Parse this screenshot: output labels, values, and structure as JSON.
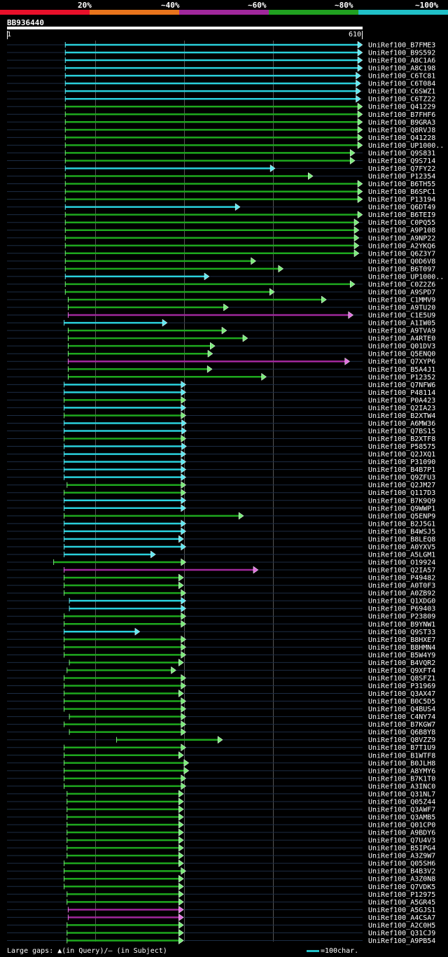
{
  "legend": {
    "labels": [
      "20%",
      "~40%",
      "~60%",
      "~80%",
      "~100%"
    ],
    "colors": [
      "#e8102a",
      "#e8741c",
      "#a0289c",
      "#20a020",
      "#20c0c8"
    ]
  },
  "query": {
    "name": "BB936440",
    "start": "1",
    "end": "610",
    "length": 610
  },
  "footer": {
    "text": "Large gaps: ▲(in Query)/– (in Subject)",
    "scale_text": "=100char.",
    "scale_color": "#20c0c8"
  },
  "chart_data": {
    "type": "alignment",
    "query_length": 610,
    "hits": [
      {
        "name": "UniRef100_B7FME3",
        "start": 100,
        "end": 610,
        "color": "cyan"
      },
      {
        "name": "UniRef100_B9S592",
        "start": 100,
        "end": 610,
        "color": "cyan"
      },
      {
        "name": "UniRef100_A8C1A6",
        "start": 100,
        "end": 610,
        "color": "cyan"
      },
      {
        "name": "UniRef100_A8C198",
        "start": 100,
        "end": 610,
        "color": "cyan"
      },
      {
        "name": "UniRef100_C6TC81",
        "start": 100,
        "end": 607,
        "color": "cyan"
      },
      {
        "name": "UniRef100_C6T084",
        "start": 100,
        "end": 607,
        "color": "cyan"
      },
      {
        "name": "UniRef100_C6SWZ1",
        "start": 100,
        "end": 607,
        "color": "cyan"
      },
      {
        "name": "UniRef100_C6TZ22",
        "start": 100,
        "end": 607,
        "color": "cyan"
      },
      {
        "name": "UniRef100_Q41229",
        "start": 100,
        "end": 610,
        "color": "green"
      },
      {
        "name": "UniRef100_B7FHF6",
        "start": 100,
        "end": 610,
        "color": "green"
      },
      {
        "name": "UniRef100_B9GRA3",
        "start": 100,
        "end": 610,
        "color": "green"
      },
      {
        "name": "UniRef100_Q8RVJ8",
        "start": 100,
        "end": 610,
        "color": "green"
      },
      {
        "name": "UniRef100_Q41228",
        "start": 100,
        "end": 610,
        "color": "green"
      },
      {
        "name": "UniRef100_UP1000..",
        "start": 100,
        "end": 610,
        "color": "green"
      },
      {
        "name": "UniRef100_Q9S831",
        "start": 100,
        "end": 597,
        "color": "green"
      },
      {
        "name": "UniRef100_Q9S714",
        "start": 100,
        "end": 597,
        "color": "green"
      },
      {
        "name": "UniRef100_Q7FY22",
        "start": 100,
        "end": 460,
        "color": "cyan"
      },
      {
        "name": "UniRef100_P12354",
        "start": 100,
        "end": 525,
        "color": "green"
      },
      {
        "name": "UniRef100_B6TH55",
        "start": 100,
        "end": 610,
        "color": "green"
      },
      {
        "name": "UniRef100_B6SPC1",
        "start": 100,
        "end": 610,
        "color": "green"
      },
      {
        "name": "UniRef100_P13194",
        "start": 100,
        "end": 610,
        "color": "green"
      },
      {
        "name": "UniRef100_Q6DT49",
        "start": 100,
        "end": 400,
        "color": "cyan"
      },
      {
        "name": "UniRef100_B6TEI9",
        "start": 100,
        "end": 610,
        "color": "green"
      },
      {
        "name": "UniRef100_C0PQ55",
        "start": 100,
        "end": 604,
        "color": "green"
      },
      {
        "name": "UniRef100_A9P108",
        "start": 100,
        "end": 604,
        "color": "green"
      },
      {
        "name": "UniRef100_A9NP22",
        "start": 100,
        "end": 604,
        "color": "green"
      },
      {
        "name": "UniRef100_A2YKQ6",
        "start": 100,
        "end": 604,
        "color": "green"
      },
      {
        "name": "UniRef100_Q6Z3Y7",
        "start": 100,
        "end": 604,
        "color": "green"
      },
      {
        "name": "UniRef100_Q0D6V8",
        "start": 100,
        "end": 427,
        "color": "green"
      },
      {
        "name": "UniRef100_B6T097",
        "start": 100,
        "end": 474,
        "color": "green"
      },
      {
        "name": "UniRef100_UP1000..",
        "start": 100,
        "end": 347,
        "color": "cyan"
      },
      {
        "name": "UniRef100_C0Z2Z6",
        "start": 100,
        "end": 597,
        "color": "green"
      },
      {
        "name": "UniRef100_A9SPD7",
        "start": 100,
        "end": 459,
        "color": "green"
      },
      {
        "name": "UniRef100_C1MMV9",
        "start": 105,
        "end": 548,
        "color": "green"
      },
      {
        "name": "UniRef100_A9TU20",
        "start": 105,
        "end": 380,
        "color": "green"
      },
      {
        "name": "UniRef100_C1E5U9",
        "start": 105,
        "end": 594,
        "color": "magenta"
      },
      {
        "name": "UniRef100_A1IW05",
        "start": 98,
        "end": 275,
        "color": "cyan"
      },
      {
        "name": "UniRef100_A9TVA9",
        "start": 105,
        "end": 377,
        "color": "green"
      },
      {
        "name": "UniRef100_A4RTE0",
        "start": 105,
        "end": 413,
        "color": "green"
      },
      {
        "name": "UniRef100_Q01DV3",
        "start": 105,
        "end": 357,
        "color": "green"
      },
      {
        "name": "UniRef100_Q5ENQ0",
        "start": 105,
        "end": 353,
        "color": "green"
      },
      {
        "name": "UniRef100_Q7XYP6",
        "start": 105,
        "end": 588,
        "color": "magenta"
      },
      {
        "name": "UniRef100_B5A4J1",
        "start": 105,
        "end": 352,
        "color": "green"
      },
      {
        "name": "UniRef100_P12352",
        "start": 105,
        "end": 445,
        "color": "green"
      },
      {
        "name": "UniRef100_Q7NFW6",
        "start": 98,
        "end": 307,
        "color": "cyan"
      },
      {
        "name": "UniRef100_P48114",
        "start": 98,
        "end": 307,
        "color": "cyan"
      },
      {
        "name": "UniRef100_P0A423",
        "start": 98,
        "end": 307,
        "color": "green"
      },
      {
        "name": "UniRef100_Q2IA23",
        "start": 98,
        "end": 307,
        "color": "cyan"
      },
      {
        "name": "UniRef100_B2XTW4",
        "start": 98,
        "end": 307,
        "color": "green"
      },
      {
        "name": "UniRef100_A6MW36",
        "start": 98,
        "end": 308,
        "color": "cyan"
      },
      {
        "name": "UniRef100_Q7BS15",
        "start": 98,
        "end": 308,
        "color": "cyan"
      },
      {
        "name": "UniRef100_B2XTF8",
        "start": 98,
        "end": 307,
        "color": "green"
      },
      {
        "name": "UniRef100_P58575",
        "start": 98,
        "end": 308,
        "color": "cyan"
      },
      {
        "name": "UniRef100_Q2JXQ1",
        "start": 98,
        "end": 307,
        "color": "cyan"
      },
      {
        "name": "UniRef100_P31090",
        "start": 98,
        "end": 307,
        "color": "cyan"
      },
      {
        "name": "UniRef100_B4B7P1",
        "start": 98,
        "end": 307,
        "color": "cyan"
      },
      {
        "name": "UniRef100_Q9ZFU3",
        "start": 98,
        "end": 307,
        "color": "cyan"
      },
      {
        "name": "UniRef100_Q2JM27",
        "start": 103,
        "end": 307,
        "color": "green"
      },
      {
        "name": "UniRef100_Q117D3",
        "start": 98,
        "end": 307,
        "color": "green"
      },
      {
        "name": "UniRef100_B7K9Q9",
        "start": 98,
        "end": 307,
        "color": "cyan"
      },
      {
        "name": "UniRef100_Q9WWP1",
        "start": 98,
        "end": 307,
        "color": "cyan"
      },
      {
        "name": "UniRef100_Q5ENP9",
        "start": 98,
        "end": 406,
        "color": "green"
      },
      {
        "name": "UniRef100_B2J5G1",
        "start": 98,
        "end": 307,
        "color": "cyan"
      },
      {
        "name": "UniRef100_B4WSJ5",
        "start": 98,
        "end": 307,
        "color": "cyan"
      },
      {
        "name": "UniRef100_B8LEQ8",
        "start": 98,
        "end": 303,
        "color": "cyan"
      },
      {
        "name": "UniRef100_A0YXV5",
        "start": 98,
        "end": 307,
        "color": "cyan"
      },
      {
        "name": "UniRef100_A5LGM1",
        "start": 98,
        "end": 255,
        "color": "cyan"
      },
      {
        "name": "UniRef100_O19924",
        "start": 80,
        "end": 307,
        "color": "green"
      },
      {
        "name": "UniRef100_Q2IA57",
        "start": 98,
        "end": 431,
        "color": "magenta"
      },
      {
        "name": "UniRef100_P49482",
        "start": 98,
        "end": 303,
        "color": "green"
      },
      {
        "name": "UniRef100_A0T0F3",
        "start": 98,
        "end": 303,
        "color": "green"
      },
      {
        "name": "UniRef100_A0ZB92",
        "start": 98,
        "end": 307,
        "color": "green"
      },
      {
        "name": "UniRef100_Q1XDG0",
        "start": 107,
        "end": 307,
        "color": "cyan"
      },
      {
        "name": "UniRef100_P69403",
        "start": 107,
        "end": 307,
        "color": "cyan"
      },
      {
        "name": "UniRef100_P23809",
        "start": 98,
        "end": 307,
        "color": "green"
      },
      {
        "name": "UniRef100_B9YNW1",
        "start": 98,
        "end": 307,
        "color": "green"
      },
      {
        "name": "UniRef100_Q9ST33",
        "start": 98,
        "end": 228,
        "color": "cyan"
      },
      {
        "name": "UniRef100_B8HXE7",
        "start": 98,
        "end": 307,
        "color": "green"
      },
      {
        "name": "UniRef100_B8HMN4",
        "start": 98,
        "end": 307,
        "color": "green"
      },
      {
        "name": "UniRef100_B5W4Y9",
        "start": 98,
        "end": 307,
        "color": "green"
      },
      {
        "name": "UniRef100_B4VQR2",
        "start": 107,
        "end": 303,
        "color": "green"
      },
      {
        "name": "UniRef100_Q9XFT4",
        "start": 103,
        "end": 290,
        "color": "green"
      },
      {
        "name": "UniRef100_Q8SFZ1",
        "start": 98,
        "end": 307,
        "color": "green"
      },
      {
        "name": "UniRef100_P31969",
        "start": 98,
        "end": 307,
        "color": "green"
      },
      {
        "name": "UniRef100_Q3AX47",
        "start": 98,
        "end": 303,
        "color": "green"
      },
      {
        "name": "UniRef100_B0C5D5",
        "start": 98,
        "end": 307,
        "color": "green"
      },
      {
        "name": "UniRef100_Q4BUS4",
        "start": 98,
        "end": 307,
        "color": "green"
      },
      {
        "name": "UniRef100_C4NY74",
        "start": 107,
        "end": 307,
        "color": "green"
      },
      {
        "name": "UniRef100_B7KGW7",
        "start": 98,
        "end": 307,
        "color": "green"
      },
      {
        "name": "UniRef100_Q6B8Y8",
        "start": 107,
        "end": 307,
        "color": "green"
      },
      {
        "name": "UniRef100_Q8VZZ9",
        "start": 188,
        "end": 370,
        "color": "green"
      },
      {
        "name": "UniRef100_B7T1U9",
        "start": 98,
        "end": 307,
        "color": "green"
      },
      {
        "name": "UniRef100_B1WTF8",
        "start": 98,
        "end": 303,
        "color": "green"
      },
      {
        "name": "UniRef100_B0JLH8",
        "start": 98,
        "end": 312,
        "color": "green"
      },
      {
        "name": "UniRef100_A8YMY6",
        "start": 98,
        "end": 312,
        "color": "green"
      },
      {
        "name": "UniRef100_B7K1T0",
        "start": 98,
        "end": 307,
        "color": "green"
      },
      {
        "name": "UniRef100_A3INC0",
        "start": 98,
        "end": 307,
        "color": "green"
      },
      {
        "name": "UniRef100_Q31NL7",
        "start": 103,
        "end": 303,
        "color": "green"
      },
      {
        "name": "UniRef100_Q05Z44",
        "start": 103,
        "end": 303,
        "color": "green"
      },
      {
        "name": "UniRef100_Q3AWF7",
        "start": 103,
        "end": 303,
        "color": "green"
      },
      {
        "name": "UniRef100_Q3AMB5",
        "start": 103,
        "end": 303,
        "color": "green"
      },
      {
        "name": "UniRef100_Q01CP0",
        "start": 103,
        "end": 303,
        "color": "green"
      },
      {
        "name": "UniRef100_A9BDY6",
        "start": 103,
        "end": 303,
        "color": "green"
      },
      {
        "name": "UniRef100_Q7U4V3",
        "start": 103,
        "end": 303,
        "color": "green"
      },
      {
        "name": "UniRef100_B5IPG4",
        "start": 103,
        "end": 303,
        "color": "green"
      },
      {
        "name": "UniRef100_A3Z9W7",
        "start": 103,
        "end": 303,
        "color": "green"
      },
      {
        "name": "UniRef100_Q05SH6",
        "start": 98,
        "end": 303,
        "color": "green"
      },
      {
        "name": "UniRef100_B4B3V2",
        "start": 98,
        "end": 307,
        "color": "green"
      },
      {
        "name": "UniRef100_A3Z0N8",
        "start": 98,
        "end": 303,
        "color": "green"
      },
      {
        "name": "UniRef100_Q7VDK5",
        "start": 98,
        "end": 303,
        "color": "green"
      },
      {
        "name": "UniRef100_P12975",
        "start": 103,
        "end": 303,
        "color": "green"
      },
      {
        "name": "UniRef100_A5GR45",
        "start": 103,
        "end": 303,
        "color": "green"
      },
      {
        "name": "UniRef100_A5GJS1",
        "start": 105,
        "end": 303,
        "color": "magenta"
      },
      {
        "name": "UniRef100_A4CSA7",
        "start": 105,
        "end": 303,
        "color": "magenta"
      },
      {
        "name": "UniRef100_A2C0H5",
        "start": 103,
        "end": 303,
        "color": "green"
      },
      {
        "name": "UniRef100_Q31CJ9",
        "start": 103,
        "end": 303,
        "color": "green"
      },
      {
        "name": "UniRef100_A9PB54",
        "start": 103,
        "end": 303,
        "color": "green"
      }
    ]
  }
}
